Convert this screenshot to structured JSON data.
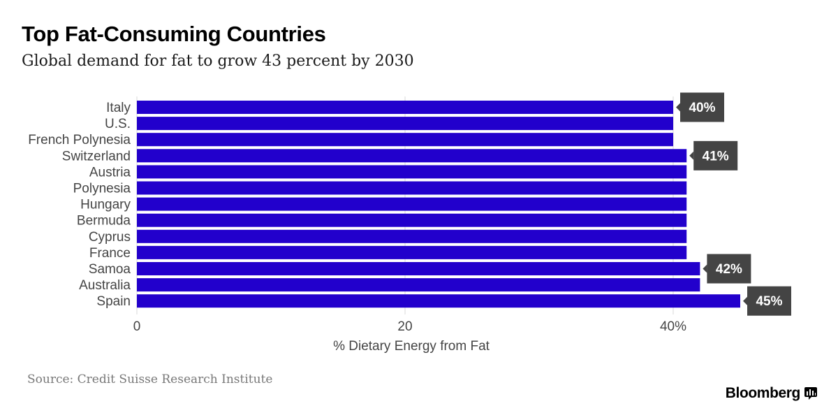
{
  "header": {
    "title": "Top Fat-Consuming Countries",
    "subtitle": "Global demand for fat to grow 43 percent by 2030"
  },
  "footer": {
    "source": "Source: Credit Suisse Research Institute",
    "brand": "Bloomberg",
    "brand_icon": "bar-chart-icon"
  },
  "colors": {
    "bar": "#2200cc",
    "callout_bg": "#444444",
    "callout_text": "#ffffff",
    "axis_text": "#444444",
    "gridline": "#d9d9d9"
  },
  "chart_data": {
    "type": "bar",
    "orientation": "horizontal",
    "title": "Top Fat-Consuming Countries",
    "subtitle": "Global demand for fat to grow 43 percent by 2030",
    "xlabel": "% Dietary Energy from Fat",
    "ylabel": "",
    "xlim": [
      0,
      50
    ],
    "xticks": [
      0,
      20,
      40
    ],
    "xtick_labels": [
      "0",
      "20",
      "40%"
    ],
    "grid": true,
    "categories": [
      "Italy",
      "U.S.",
      "French Polynesia",
      "Switzerland",
      "Austria",
      "Polynesia",
      "Hungary",
      "Bermuda",
      "Cyprus",
      "France",
      "Samoa",
      "Australia",
      "Spain"
    ],
    "values": [
      40,
      40,
      40,
      41,
      41,
      41,
      41,
      41,
      41,
      41,
      42,
      42,
      45
    ],
    "data_labels": [
      {
        "category": "Italy",
        "text": "40%"
      },
      {
        "category": "Switzerland",
        "text": "41%"
      },
      {
        "category": "Samoa",
        "text": "42%"
      },
      {
        "category": "Spain",
        "text": "45%"
      }
    ]
  }
}
